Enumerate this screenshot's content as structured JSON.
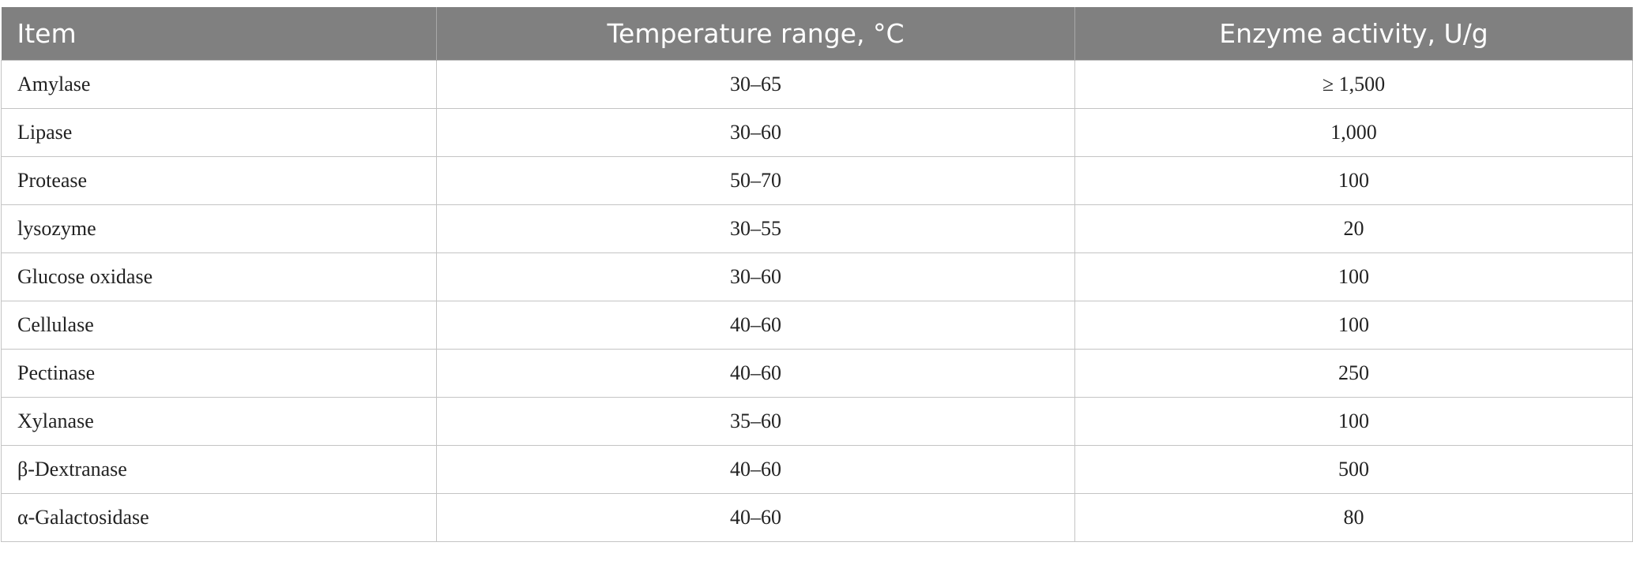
{
  "table": {
    "header": [
      "Item",
      "Temperature range, °C",
      "Enzyme activity, U/g"
    ],
    "rows": [
      [
        "Amylase",
        "30–65",
        "≥ 1,500"
      ],
      [
        "Lipase",
        "30–60",
        "1,000"
      ],
      [
        "Protease",
        "50–70",
        "100"
      ],
      [
        "lysozyme",
        "30–55",
        "20"
      ],
      [
        "Glucose oxidase",
        "30–60",
        "100"
      ],
      [
        "Cellulase",
        "40–60",
        "100"
      ],
      [
        "Pectinase",
        "40–60",
        "250"
      ],
      [
        "Xylanase",
        "35–60",
        "100"
      ],
      [
        "β-Dextranase",
        "40–60",
        "500"
      ],
      [
        "α-Galactosidase",
        "40–60",
        "80"
      ]
    ]
  }
}
